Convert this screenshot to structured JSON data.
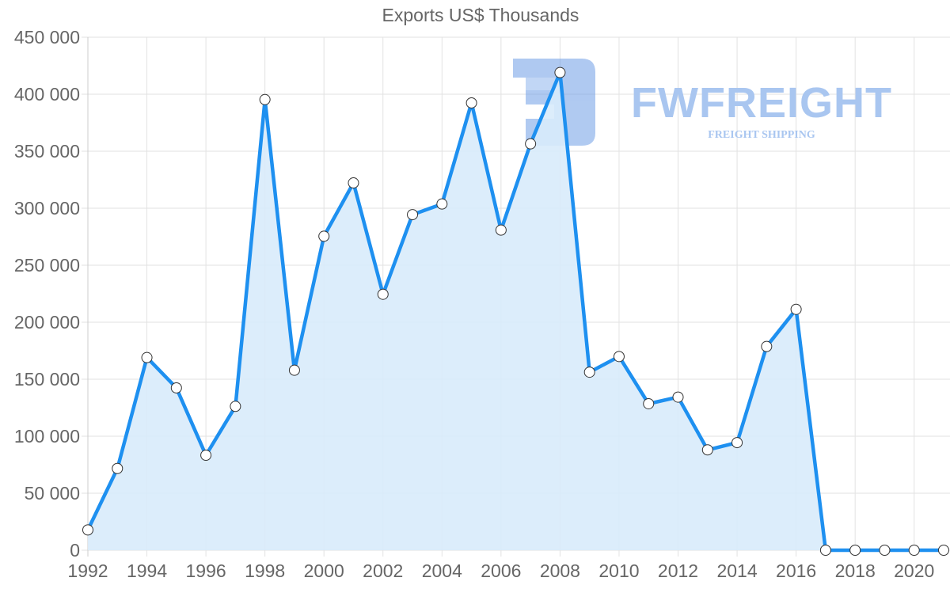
{
  "chart_data": {
    "type": "line",
    "title": "Exports US$ Thousands",
    "xlabel": "",
    "ylabel": "",
    "x": [
      1992,
      1993,
      1994,
      1995,
      1996,
      1997,
      1998,
      1999,
      2000,
      2001,
      2002,
      2003,
      2004,
      2005,
      2006,
      2007,
      2008,
      2009,
      2010,
      2011,
      2012,
      2013,
      2014,
      2015,
      2016,
      2017,
      2018,
      2019,
      2020,
      2021
    ],
    "values": [
      17800,
      71700,
      169000,
      142400,
      83300,
      126200,
      395300,
      157900,
      275400,
      322200,
      224500,
      294400,
      303700,
      392400,
      280800,
      356500,
      419000,
      156200,
      169900,
      128500,
      134300,
      88000,
      94400,
      178700,
      211300,
      0,
      0,
      0,
      0,
      0
    ],
    "series": [
      {
        "name": "Exports US$ Thousands",
        "values": [
          17800,
          71700,
          169000,
          142400,
          83300,
          126200,
          395300,
          157900,
          275400,
          322200,
          224500,
          294400,
          303700,
          392400,
          280800,
          356500,
          419000,
          156200,
          169900,
          128500,
          134300,
          88000,
          94400,
          178700,
          211300,
          0,
          0,
          0,
          0,
          0
        ]
      }
    ],
    "ylim": [
      0,
      450000
    ],
    "yticks": [
      0,
      50000,
      100000,
      150000,
      200000,
      250000,
      300000,
      350000,
      400000,
      450000
    ],
    "ytick_labels": [
      "0",
      "50 000",
      "100 000",
      "150 000",
      "200 000",
      "250 000",
      "300 000",
      "350 000",
      "400 000",
      "450 000"
    ],
    "xtick_labels": [
      "1992",
      "1994",
      "1996",
      "1998",
      "2000",
      "2002",
      "2004",
      "2006",
      "2008",
      "2010",
      "2012",
      "2014",
      "2016",
      "2018",
      "2020"
    ],
    "grid": true,
    "legend": "none",
    "filled_area": true
  },
  "colors": {
    "line": "#1e90f0",
    "fill": "#d8ebfb",
    "grid": "#e2e2e2",
    "axis_text": "#666666",
    "point_fill": "#ffffff",
    "point_stroke": "#333333",
    "watermark": "#a9c6f0"
  },
  "watermark": {
    "brand": "FWFREIGHT",
    "tagline": "FREIGHT SHIPPING"
  }
}
